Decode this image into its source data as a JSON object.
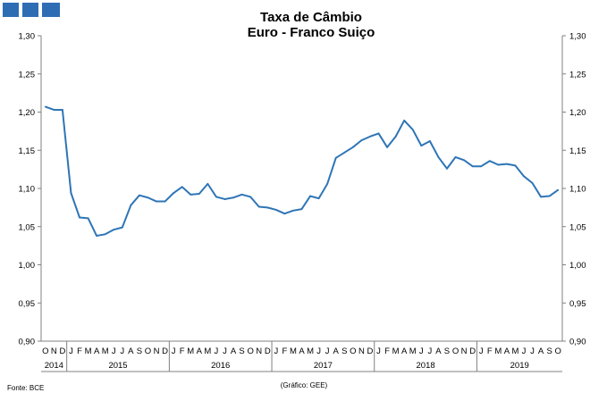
{
  "header": {
    "title_line1": "Taxa de Câmbio",
    "title_line2": "Euro - Franco Suiço",
    "logo_color": "#2E6DB4"
  },
  "footer": {
    "source": "Fonte: BCE",
    "credit": "(Gráfico:  GEE)"
  },
  "chart_data": {
    "type": "line",
    "title": "Taxa de Câmbio\nEuro - Franco Suiço",
    "xlabel": "",
    "ylabel": "",
    "ylim": [
      0.9,
      1.3
    ],
    "yticks": [
      "0,90",
      "0,95",
      "1,00",
      "1,05",
      "1,10",
      "1,15",
      "1,20",
      "1,25",
      "1,30"
    ],
    "month_labels": [
      "O",
      "N",
      "D",
      "J",
      "F",
      "M",
      "A",
      "M",
      "J",
      "J",
      "A",
      "S",
      "O",
      "N",
      "D",
      "J",
      "F",
      "M",
      "A",
      "M",
      "J",
      "J",
      "A",
      "S",
      "O",
      "N",
      "D",
      "J",
      "F",
      "M",
      "A",
      "M",
      "J",
      "J",
      "A",
      "S",
      "O",
      "N",
      "D",
      "J",
      "F",
      "M",
      "A",
      "M",
      "J",
      "J",
      "A",
      "S",
      "O",
      "N",
      "D",
      "J",
      "F",
      "M",
      "A",
      "M",
      "J",
      "J",
      "A",
      "S",
      "O"
    ],
    "year_labels": [
      {
        "label": "2014",
        "start": 0,
        "end": 2
      },
      {
        "label": "2015",
        "start": 3,
        "end": 14
      },
      {
        "label": "2016",
        "start": 15,
        "end": 26
      },
      {
        "label": "2017",
        "start": 27,
        "end": 38
      },
      {
        "label": "2018",
        "start": 39,
        "end": 50
      },
      {
        "label": "2019",
        "start": 51,
        "end": 60
      }
    ],
    "grid": false,
    "line_color": "#2E75B6",
    "series": [
      {
        "values": [
          1.207,
          1.203,
          1.203,
          1.094,
          1.062,
          1.061,
          1.038,
          1.04,
          1.046,
          1.049,
          1.078,
          1.091,
          1.088,
          1.083,
          1.083,
          1.094,
          1.102,
          1.092,
          1.093,
          1.106,
          1.089,
          1.086,
          1.088,
          1.092,
          1.089,
          1.076,
          1.075,
          1.072,
          1.067,
          1.071,
          1.073,
          1.09,
          1.087,
          1.106,
          1.14,
          1.147,
          1.154,
          1.163,
          1.168,
          1.172,
          1.154,
          1.168,
          1.189,
          1.177,
          1.156,
          1.162,
          1.141,
          1.126,
          1.141,
          1.137,
          1.129,
          1.129,
          1.136,
          1.131,
          1.132,
          1.13,
          1.116,
          1.107,
          1.089,
          1.09,
          1.098
        ]
      }
    ]
  }
}
